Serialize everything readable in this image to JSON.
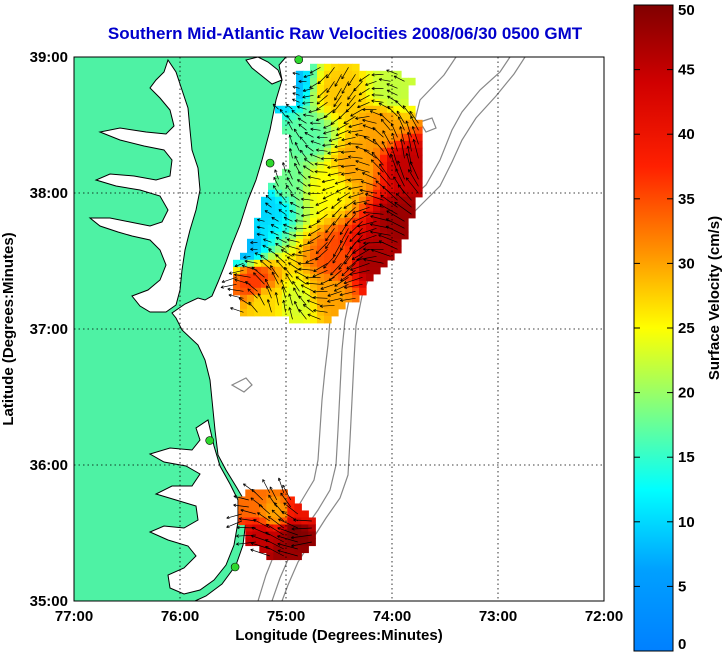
{
  "title": "Southern Mid-Atlantic Raw Velocities 2008/06/30 0500 GMT",
  "xlabel": "Longitude (Degrees:Minutes)",
  "ylabel": "Latitude (Degrees:Minutes)",
  "x_ticks": [
    "77:00",
    "76:00",
    "75:00",
    "74:00",
    "73:00",
    "72:00"
  ],
  "y_ticks": [
    "39:00",
    "38:00",
    "37:00",
    "36:00",
    "35:00"
  ],
  "colorbar": {
    "label": "Surface Velocity (cm/s)",
    "ticks": [
      "0",
      "5",
      "10",
      "15",
      "20",
      "25",
      "30",
      "35",
      "40",
      "45",
      "50"
    ],
    "min": 0,
    "max": 50,
    "colormap": "jet"
  },
  "colors": {
    "land": "#4ef2a4",
    "coast": "#000000",
    "bathymetry": "#888888",
    "stations": "#2ed82e",
    "title": "#0000cc"
  },
  "map_extent": {
    "lon": [
      -77,
      -72
    ],
    "lat": [
      35,
      39
    ]
  },
  "chart_data": {
    "type": "heatmap",
    "title": "Southern Mid-Atlantic Raw Velocities 2008/06/30 0500 GMT",
    "xlabel": "Longitude (Degrees:Minutes)",
    "ylabel": "Latitude (Degrees:Minutes)",
    "xlim": [
      -77,
      -72
    ],
    "ylim": [
      35,
      39
    ],
    "grid": true,
    "colorbar_range": [
      0,
      50
    ],
    "stations": [
      {
        "lon": -74.88,
        "lat": 38.98
      },
      {
        "lon": -75.15,
        "lat": 38.22
      },
      {
        "lon": -75.72,
        "lat": 36.18
      },
      {
        "lon": -75.48,
        "lat": 35.25
      }
    ],
    "regions": [
      {
        "name": "northern field",
        "polygon": [
          [
            -75.1,
            38.65
          ],
          [
            -74.9,
            38.65
          ],
          [
            -74.9,
            38.9
          ],
          [
            -74.6,
            38.95
          ],
          [
            -74.25,
            38.92
          ],
          [
            -74.0,
            38.9
          ],
          [
            -73.8,
            38.85
          ],
          [
            -73.85,
            38.65
          ],
          [
            -73.75,
            38.55
          ],
          [
            -73.7,
            38.35
          ],
          [
            -73.7,
            38.1
          ],
          [
            -73.8,
            37.85
          ],
          [
            -73.9,
            37.6
          ],
          [
            -74.1,
            37.45
          ],
          [
            -74.3,
            37.25
          ],
          [
            -74.6,
            37.05
          ],
          [
            -74.8,
            37.05
          ],
          [
            -75.25,
            37.1
          ],
          [
            -75.4,
            37.1
          ],
          [
            -75.5,
            37.3
          ],
          [
            -75.5,
            37.45
          ],
          [
            -75.3,
            37.7
          ],
          [
            -75.2,
            38.0
          ],
          [
            -75.0,
            38.2
          ],
          [
            -75.0,
            38.4
          ]
        ],
        "speed_points": [
          [
            -75.0,
            38.8,
            8
          ],
          [
            -74.5,
            38.75,
            28
          ],
          [
            -74.0,
            38.75,
            22
          ],
          [
            -74.1,
            38.5,
            30
          ],
          [
            -73.85,
            38.2,
            45
          ],
          [
            -73.9,
            37.8,
            48
          ],
          [
            -74.2,
            37.5,
            47
          ],
          [
            -74.5,
            37.5,
            35
          ],
          [
            -74.6,
            37.25,
            30
          ],
          [
            -74.9,
            37.2,
            23
          ],
          [
            -75.2,
            37.2,
            27
          ],
          [
            -75.3,
            37.35,
            36
          ],
          [
            -75.2,
            37.9,
            10
          ],
          [
            -75.0,
            38.1,
            18
          ],
          [
            -74.8,
            38.4,
            17
          ],
          [
            -74.6,
            38.05,
            25
          ],
          [
            -75.4,
            37.6,
            8
          ],
          [
            -74.35,
            38.2,
            30
          ]
        ]
      },
      {
        "name": "southern field",
        "polygon": [
          [
            -75.4,
            35.82
          ],
          [
            -75.05,
            35.82
          ],
          [
            -74.9,
            35.72
          ],
          [
            -74.75,
            35.6
          ],
          [
            -74.7,
            35.45
          ],
          [
            -74.9,
            35.3
          ],
          [
            -75.1,
            35.28
          ],
          [
            -75.35,
            35.42
          ],
          [
            -75.45,
            35.6
          ]
        ],
        "speed_points": [
          [
            -75.35,
            35.75,
            33
          ],
          [
            -75.1,
            35.65,
            30
          ],
          [
            -75.2,
            35.45,
            45
          ],
          [
            -74.9,
            35.5,
            50
          ],
          [
            -75.0,
            35.35,
            48
          ],
          [
            -74.85,
            35.65,
            40
          ]
        ]
      }
    ]
  }
}
